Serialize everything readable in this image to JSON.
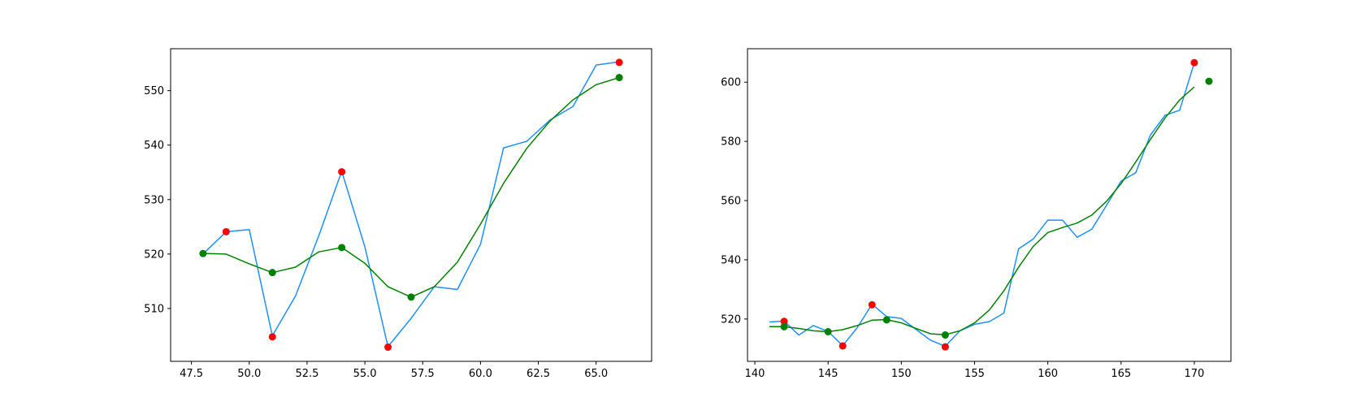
{
  "chart_data": [
    {
      "type": "line",
      "title": "",
      "xlabel": "",
      "ylabel": "",
      "xlim": [
        46.6,
        67.4
      ],
      "ylim": [
        500.3,
        557.7
      ],
      "xticks": [
        "47.5",
        "50.0",
        "52.5",
        "55.0",
        "57.5",
        "60.0",
        "62.5",
        "65.0"
      ],
      "yticks": [
        "510",
        "520",
        "530",
        "540",
        "550"
      ],
      "xtick_values": [
        47.5,
        50.0,
        52.5,
        55.0,
        57.5,
        60.0,
        62.5,
        65.0
      ],
      "ytick_values": [
        510,
        520,
        530,
        540,
        550
      ],
      "grid": false,
      "series": [
        {
          "kind": "line",
          "color": "#1e90ff",
          "x": [
            48,
            49,
            50,
            51,
            52,
            53,
            54,
            55,
            56,
            57,
            58,
            59,
            60,
            61,
            62,
            63,
            64,
            65,
            66
          ],
          "y": [
            520.0,
            524.1,
            524.5,
            505.0,
            512.3,
            523.3,
            535.2,
            521.3,
            503.0,
            508.2,
            514.0,
            513.5,
            521.8,
            539.5,
            540.7,
            544.6,
            547.1,
            554.7,
            555.3
          ]
        },
        {
          "kind": "line",
          "color": "#008000",
          "x": [
            48,
            49,
            50,
            51,
            52,
            53,
            54,
            55,
            56,
            57,
            58,
            59,
            60,
            61,
            62,
            63,
            64,
            65,
            66
          ],
          "y": [
            520.1,
            520.0,
            518.2,
            516.6,
            517.6,
            520.4,
            521.2,
            518.3,
            514.0,
            512.1,
            514.0,
            518.5,
            525.5,
            533.0,
            539.4,
            544.4,
            548.3,
            551.1,
            552.4
          ]
        },
        {
          "kind": "scatter",
          "color": "#ff0000",
          "x": [
            49,
            51,
            54,
            56,
            66
          ],
          "y": [
            524.1,
            504.8,
            535.1,
            502.9,
            555.2
          ]
        },
        {
          "kind": "scatter",
          "color": "#008000",
          "x": [
            48,
            51,
            54,
            57,
            66
          ],
          "y": [
            520.1,
            516.6,
            521.2,
            512.1,
            552.4
          ]
        }
      ]
    },
    {
      "type": "line",
      "title": "",
      "xlabel": "",
      "ylabel": "",
      "xlim": [
        139.5,
        172.5
      ],
      "ylim": [
        505.7,
        611.3
      ],
      "xticks": [
        "140",
        "145",
        "150",
        "155",
        "160",
        "165",
        "170"
      ],
      "yticks": [
        "520",
        "540",
        "560",
        "580",
        "600"
      ],
      "xtick_values": [
        140,
        145,
        150,
        155,
        160,
        165,
        170
      ],
      "ytick_values": [
        520,
        540,
        560,
        580,
        600
      ],
      "grid": false,
      "series": [
        {
          "kind": "line",
          "color": "#1e90ff",
          "x": [
            141,
            142,
            143,
            144,
            145,
            146,
            147,
            148,
            149,
            150,
            151,
            152,
            153,
            154,
            155,
            156,
            157,
            158,
            159,
            160,
            161,
            162,
            163,
            164,
            165,
            166,
            167,
            168,
            169,
            170
          ],
          "y": [
            519.0,
            519.3,
            514.6,
            517.8,
            515.8,
            511.0,
            517.1,
            525.0,
            520.8,
            520.2,
            516.5,
            512.8,
            510.8,
            516.0,
            518.2,
            519.1,
            522.0,
            543.7,
            547.0,
            553.4,
            553.4,
            547.6,
            550.3,
            558.3,
            566.6,
            569.4,
            582.1,
            588.8,
            590.5,
            606.5
          ]
        },
        {
          "kind": "line",
          "color": "#008000",
          "x": [
            141,
            142,
            143,
            144,
            145,
            146,
            147,
            148,
            149,
            150,
            151,
            152,
            153,
            154,
            155,
            156,
            157,
            158,
            159,
            160,
            161,
            162,
            163,
            164,
            165,
            166,
            167,
            168,
            169,
            170
          ],
          "y": [
            517.4,
            517.4,
            516.8,
            516.0,
            515.7,
            516.4,
            517.8,
            519.6,
            519.8,
            518.7,
            516.8,
            515.0,
            514.7,
            516.0,
            518.7,
            523.0,
            529.5,
            537.5,
            544.5,
            549.2,
            550.9,
            552.4,
            555.1,
            559.7,
            565.7,
            573.0,
            580.6,
            587.9,
            594.0,
            598.4
          ]
        },
        {
          "kind": "scatter",
          "color": "#ff0000",
          "x": [
            142,
            146,
            148,
            153,
            170
          ],
          "y": [
            519.2,
            510.9,
            524.8,
            510.6,
            606.6
          ]
        },
        {
          "kind": "scatter",
          "color": "#008000",
          "x": [
            142,
            145,
            149,
            153,
            171
          ],
          "y": [
            517.4,
            515.7,
            519.7,
            514.6,
            600.3
          ]
        }
      ]
    }
  ]
}
